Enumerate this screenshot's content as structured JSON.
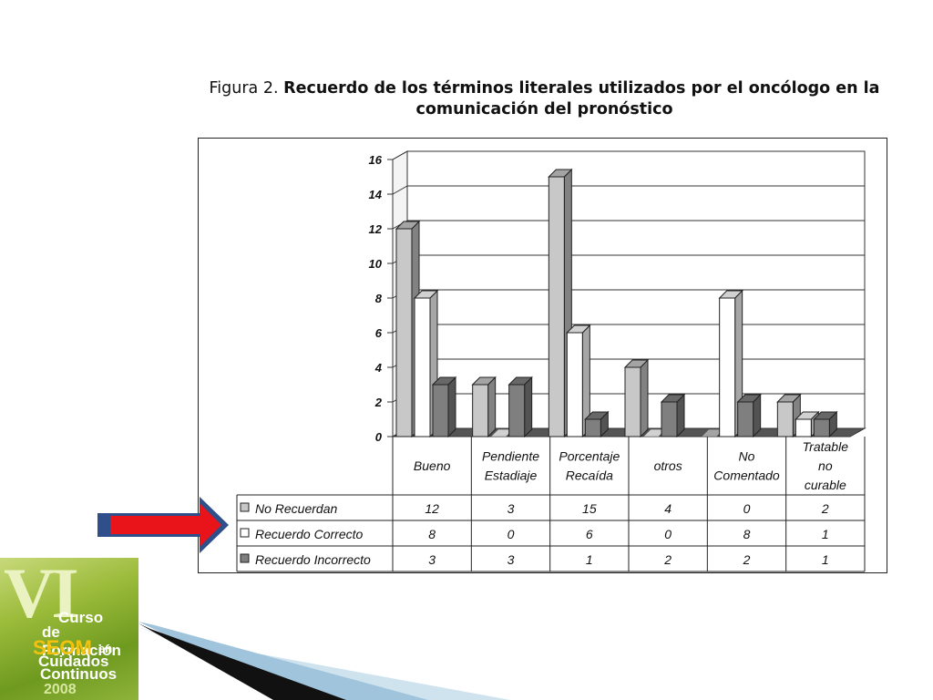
{
  "title": {
    "prefix": "Figura 2.",
    "main": "Recuerdo de los términos literales utilizados por el oncólogo en la comunicación del pronóstico"
  },
  "chart_data": {
    "type": "bar",
    "categories": [
      [
        "Bueno"
      ],
      [
        "Pendiente",
        "Estadiaje"
      ],
      [
        "Porcentaje",
        "Recaída"
      ],
      [
        "otros"
      ],
      [
        "No",
        "Comentado"
      ],
      [
        "Tratable",
        "no",
        "curable"
      ]
    ],
    "series": [
      {
        "name": "No Recuerdan",
        "values": [
          12,
          3,
          15,
          4,
          0,
          2
        ],
        "color": "#c8c8c8"
      },
      {
        "name": "Recuerdo Correcto",
        "values": [
          8,
          0,
          6,
          0,
          8,
          1
        ],
        "color": "#ffffff"
      },
      {
        "name": "Recuerdo Incorrecto",
        "values": [
          3,
          3,
          1,
          2,
          2,
          1
        ],
        "color": "#7f7f7f"
      }
    ],
    "ylim": [
      0,
      16
    ],
    "yticks": [
      0,
      2,
      4,
      6,
      8,
      10,
      12,
      14,
      16
    ],
    "grid": true,
    "legend": "data-table"
  },
  "logo": {
    "roman": "VI",
    "line1": "Curso",
    "line2": "de Formación",
    "line3": "SEOM",
    "line3b": "en",
    "line4": "Cuidados",
    "line5": "Continuos",
    "year": "2008"
  },
  "colors": {
    "arrow_fill": "#e8141a",
    "arrow_border": "#2f4f8a",
    "swoosh_dark": "#111111",
    "swoosh_light": "#9fc4dc"
  }
}
